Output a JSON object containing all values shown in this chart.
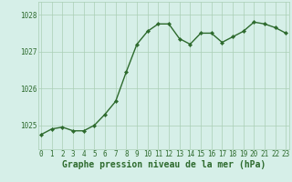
{
  "x": [
    0,
    1,
    2,
    3,
    4,
    5,
    6,
    7,
    8,
    9,
    10,
    11,
    12,
    13,
    14,
    15,
    16,
    17,
    18,
    19,
    20,
    21,
    22,
    23
  ],
  "y": [
    1024.75,
    1024.9,
    1024.95,
    1024.85,
    1024.85,
    1025.0,
    1025.3,
    1025.65,
    1026.45,
    1027.2,
    1027.55,
    1027.75,
    1027.75,
    1027.35,
    1027.2,
    1027.5,
    1027.5,
    1027.25,
    1027.4,
    1027.55,
    1027.8,
    1027.75,
    1027.65,
    1027.5
  ],
  "line_color": "#2d6a2d",
  "marker": "D",
  "marker_size": 2.2,
  "bg_color": "#d6efe8",
  "grid_color": "#aacfb5",
  "xlabel": "Graphe pression niveau de la mer (hPa)",
  "xlabel_color": "#2d6a2d",
  "ylabel_ticks": [
    1025,
    1026,
    1027,
    1028
  ],
  "ylim": [
    1024.35,
    1028.35
  ],
  "xlim": [
    -0.3,
    23.3
  ],
  "xticks": [
    0,
    1,
    2,
    3,
    4,
    5,
    6,
    7,
    8,
    9,
    10,
    11,
    12,
    13,
    14,
    15,
    16,
    17,
    18,
    19,
    20,
    21,
    22,
    23
  ],
  "tick_fontsize": 5.5,
  "xlabel_fontsize": 7.0,
  "linewidth": 1.0
}
